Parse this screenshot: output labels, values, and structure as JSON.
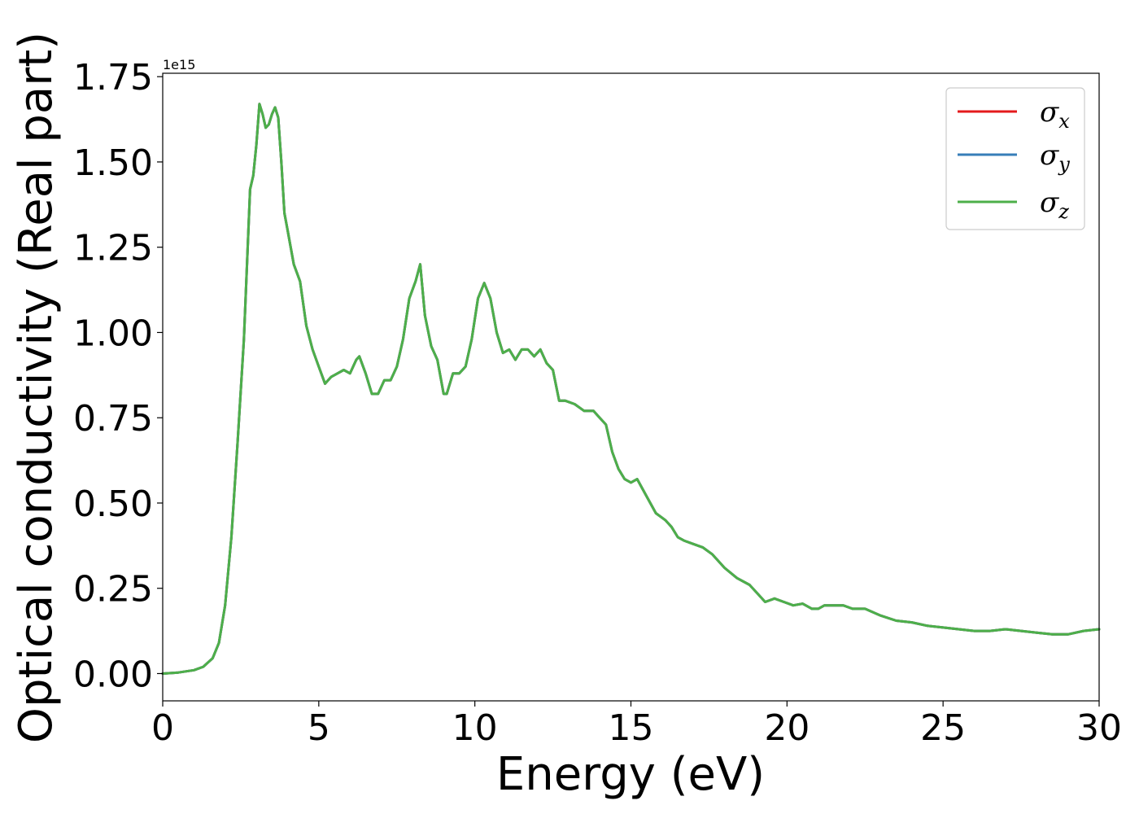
{
  "chart_data": {
    "type": "line",
    "title": "",
    "xlabel": "Energy (eV)",
    "ylabel": "Optical conductivity (Real part)",
    "y_offset_label": "1e15",
    "xlim": [
      0,
      30
    ],
    "ylim": [
      -0.08,
      1.76
    ],
    "xticks": [
      0,
      5,
      10,
      15,
      20,
      25,
      30
    ],
    "xtick_labels": [
      "0",
      "5",
      "10",
      "15",
      "20",
      "25",
      "30"
    ],
    "yticks": [
      0.0,
      0.25,
      0.5,
      0.75,
      1.0,
      1.25,
      1.5,
      1.75
    ],
    "ytick_labels": [
      "0.00",
      "0.25",
      "0.50",
      "0.75",
      "1.00",
      "1.25",
      "1.50",
      "1.75"
    ],
    "grid": false,
    "legend_position": "top-right",
    "colors": {
      "sigma_x": "#e41a1c",
      "sigma_y": "#377eb8",
      "sigma_z": "#4daf4a"
    },
    "x": [
      0,
      0.5,
      1.0,
      1.3,
      1.6,
      1.8,
      2.0,
      2.2,
      2.4,
      2.6,
      2.8,
      2.9,
      3.0,
      3.1,
      3.2,
      3.3,
      3.4,
      3.5,
      3.6,
      3.7,
      3.8,
      3.9,
      4.0,
      4.2,
      4.4,
      4.6,
      4.8,
      5.0,
      5.2,
      5.4,
      5.6,
      5.8,
      6.0,
      6.2,
      6.3,
      6.5,
      6.7,
      6.9,
      7.1,
      7.3,
      7.5,
      7.7,
      7.9,
      8.1,
      8.25,
      8.4,
      8.6,
      8.8,
      9.0,
      9.1,
      9.3,
      9.5,
      9.7,
      9.9,
      10.1,
      10.3,
      10.5,
      10.7,
      10.9,
      11.1,
      11.3,
      11.5,
      11.7,
      11.9,
      12.1,
      12.3,
      12.5,
      12.7,
      12.9,
      13.2,
      13.5,
      13.8,
      14.0,
      14.2,
      14.4,
      14.6,
      14.8,
      15.0,
      15.2,
      15.5,
      15.8,
      16.1,
      16.3,
      16.5,
      16.7,
      17.0,
      17.3,
      17.6,
      18.0,
      18.4,
      18.8,
      19.0,
      19.3,
      19.6,
      19.9,
      20.2,
      20.5,
      20.8,
      21.0,
      21.2,
      21.5,
      21.8,
      22.1,
      22.5,
      23.0,
      23.5,
      24.0,
      24.5,
      25.0,
      25.5,
      26.0,
      26.5,
      27.0,
      27.5,
      28.0,
      28.5,
      29.0,
      29.5,
      30.0
    ],
    "series": [
      {
        "name": "σx",
        "label_base": "σ",
        "label_sub": "x",
        "color": "#e41a1c",
        "values": [
          0.0,
          0.003,
          0.01,
          0.02,
          0.045,
          0.09,
          0.2,
          0.4,
          0.68,
          0.98,
          1.42,
          1.46,
          1.55,
          1.67,
          1.64,
          1.6,
          1.61,
          1.64,
          1.66,
          1.63,
          1.5,
          1.35,
          1.3,
          1.2,
          1.15,
          1.02,
          0.95,
          0.9,
          0.85,
          0.87,
          0.88,
          0.89,
          0.88,
          0.92,
          0.93,
          0.88,
          0.82,
          0.82,
          0.86,
          0.86,
          0.9,
          0.98,
          1.1,
          1.15,
          1.2,
          1.05,
          0.96,
          0.92,
          0.82,
          0.82,
          0.88,
          0.88,
          0.9,
          0.98,
          1.1,
          1.145,
          1.1,
          1.0,
          0.94,
          0.95,
          0.92,
          0.95,
          0.95,
          0.93,
          0.95,
          0.91,
          0.89,
          0.8,
          0.8,
          0.79,
          0.77,
          0.77,
          0.75,
          0.73,
          0.65,
          0.6,
          0.57,
          0.56,
          0.57,
          0.52,
          0.47,
          0.45,
          0.43,
          0.4,
          0.39,
          0.38,
          0.37,
          0.35,
          0.31,
          0.28,
          0.26,
          0.24,
          0.21,
          0.22,
          0.21,
          0.2,
          0.205,
          0.19,
          0.19,
          0.2,
          0.2,
          0.2,
          0.19,
          0.19,
          0.17,
          0.155,
          0.15,
          0.14,
          0.135,
          0.13,
          0.125,
          0.125,
          0.13,
          0.125,
          0.12,
          0.115,
          0.115,
          0.125,
          0.13
        ]
      },
      {
        "name": "σy",
        "label_base": "σ",
        "label_sub": "y",
        "color": "#377eb8",
        "values": [
          0.0,
          0.003,
          0.01,
          0.02,
          0.045,
          0.09,
          0.2,
          0.4,
          0.68,
          0.98,
          1.42,
          1.46,
          1.55,
          1.67,
          1.64,
          1.6,
          1.61,
          1.64,
          1.66,
          1.63,
          1.5,
          1.35,
          1.3,
          1.2,
          1.15,
          1.02,
          0.95,
          0.9,
          0.85,
          0.87,
          0.88,
          0.89,
          0.88,
          0.92,
          0.93,
          0.88,
          0.82,
          0.82,
          0.86,
          0.86,
          0.9,
          0.98,
          1.1,
          1.15,
          1.2,
          1.05,
          0.96,
          0.92,
          0.82,
          0.82,
          0.88,
          0.88,
          0.9,
          0.98,
          1.1,
          1.145,
          1.1,
          1.0,
          0.94,
          0.95,
          0.92,
          0.95,
          0.95,
          0.93,
          0.95,
          0.91,
          0.89,
          0.8,
          0.8,
          0.79,
          0.77,
          0.77,
          0.75,
          0.73,
          0.65,
          0.6,
          0.57,
          0.56,
          0.57,
          0.52,
          0.47,
          0.45,
          0.43,
          0.4,
          0.39,
          0.38,
          0.37,
          0.35,
          0.31,
          0.28,
          0.26,
          0.24,
          0.21,
          0.22,
          0.21,
          0.2,
          0.205,
          0.19,
          0.19,
          0.2,
          0.2,
          0.2,
          0.19,
          0.19,
          0.17,
          0.155,
          0.15,
          0.14,
          0.135,
          0.13,
          0.125,
          0.125,
          0.13,
          0.125,
          0.12,
          0.115,
          0.115,
          0.125,
          0.13
        ]
      },
      {
        "name": "σz",
        "label_base": "σ",
        "label_sub": "z",
        "color": "#4daf4a",
        "values": [
          0.0,
          0.003,
          0.01,
          0.02,
          0.045,
          0.09,
          0.2,
          0.4,
          0.68,
          0.98,
          1.42,
          1.46,
          1.55,
          1.67,
          1.64,
          1.6,
          1.61,
          1.64,
          1.66,
          1.63,
          1.5,
          1.35,
          1.3,
          1.2,
          1.15,
          1.02,
          0.95,
          0.9,
          0.85,
          0.87,
          0.88,
          0.89,
          0.88,
          0.92,
          0.93,
          0.88,
          0.82,
          0.82,
          0.86,
          0.86,
          0.9,
          0.98,
          1.1,
          1.15,
          1.2,
          1.05,
          0.96,
          0.92,
          0.82,
          0.82,
          0.88,
          0.88,
          0.9,
          0.98,
          1.1,
          1.145,
          1.1,
          1.0,
          0.94,
          0.95,
          0.92,
          0.95,
          0.95,
          0.93,
          0.95,
          0.91,
          0.89,
          0.8,
          0.8,
          0.79,
          0.77,
          0.77,
          0.75,
          0.73,
          0.65,
          0.6,
          0.57,
          0.56,
          0.57,
          0.52,
          0.47,
          0.45,
          0.43,
          0.4,
          0.39,
          0.38,
          0.37,
          0.35,
          0.31,
          0.28,
          0.26,
          0.24,
          0.21,
          0.22,
          0.21,
          0.2,
          0.205,
          0.19,
          0.19,
          0.2,
          0.2,
          0.2,
          0.19,
          0.19,
          0.17,
          0.155,
          0.15,
          0.14,
          0.135,
          0.13,
          0.125,
          0.125,
          0.13,
          0.125,
          0.12,
          0.115,
          0.115,
          0.125,
          0.13
        ]
      }
    ]
  }
}
